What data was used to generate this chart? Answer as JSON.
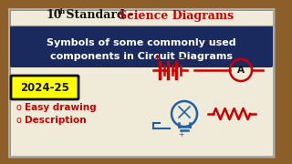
{
  "bg_color": "#8B5E2A",
  "inner_bg": "#f0ead8",
  "banner_bg": "#1a2a5e",
  "year_bg": "#ffff00",
  "year_text": "2024-25",
  "bullet1": "Easy drawing",
  "bullet2": "Description",
  "red": "#cc0000",
  "blue": "#2060aa",
  "black": "#111111",
  "white": "#ffffff",
  "title_line1_black": "10",
  "title_sup": "th",
  "title_line1_mid": " Standard - ",
  "title_line1_red": "Science Diagrams",
  "banner_line1": "Symbols of some commonly used",
  "banner_line2": "components in Circuit Diagrams"
}
